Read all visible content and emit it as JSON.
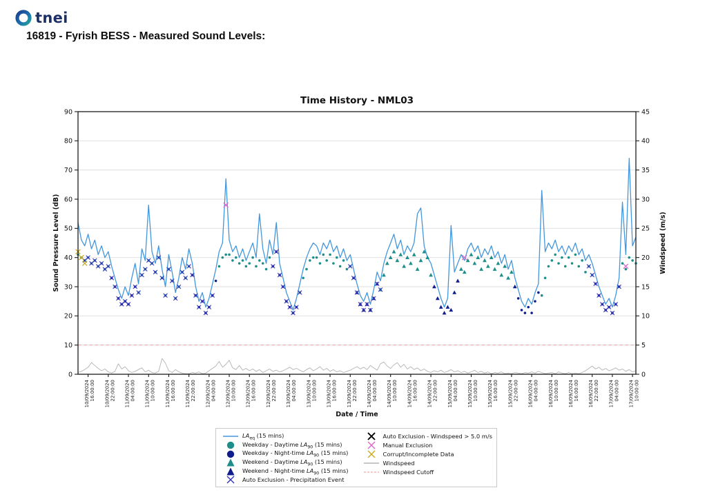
{
  "header": {
    "logo_text": "tnei",
    "title": "16819 - Fyrish BESS - Measured Sound Levels:"
  },
  "chart": {
    "title": "Time History - NML03",
    "x_label": "Date / Time",
    "y_left_label": "Sound Pressure Level (dB)",
    "y_right_label": "Windspeed (m/s)",
    "y_left_ticks": [
      0,
      10,
      20,
      30,
      40,
      50,
      60,
      70,
      80,
      90
    ],
    "y_right_ticks": [
      0,
      5,
      10,
      15,
      20,
      25,
      30,
      35,
      40,
      45
    ],
    "x_ticks": [
      {
        "date": "10/09/2024",
        "time": "16:00:00"
      },
      {
        "date": "10/09/2024",
        "time": "22:00:00"
      },
      {
        "date": "11/09/2024",
        "time": "04:00:00"
      },
      {
        "date": "11/09/2024",
        "time": "10:00:00"
      },
      {
        "date": "11/09/2024",
        "time": "16:00:00"
      },
      {
        "date": "11/09/2024",
        "time": "22:00:00"
      },
      {
        "date": "12/09/2024",
        "time": "04:00:00"
      },
      {
        "date": "12/09/2024",
        "time": "10:00:00"
      },
      {
        "date": "12/09/2024",
        "time": "16:00:00"
      },
      {
        "date": "12/09/2024",
        "time": "22:00:00"
      },
      {
        "date": "13/09/2024",
        "time": "04:00:00"
      },
      {
        "date": "13/09/2024",
        "time": "10:00:00"
      },
      {
        "date": "13/09/2024",
        "time": "16:00:00"
      },
      {
        "date": "13/09/2024",
        "time": "22:00:00"
      },
      {
        "date": "14/09/2024",
        "time": "04:00:00"
      },
      {
        "date": "14/09/2024",
        "time": "10:00:00"
      },
      {
        "date": "14/09/2024",
        "time": "16:00:00"
      },
      {
        "date": "14/09/2024",
        "time": "22:00:00"
      },
      {
        "date": "15/09/2024",
        "time": "04:00:00"
      },
      {
        "date": "15/09/2024",
        "time": "10:00:00"
      },
      {
        "date": "15/09/2024",
        "time": "16:00:00"
      },
      {
        "date": "15/09/2024",
        "time": "22:00:00"
      },
      {
        "date": "16/09/2024",
        "time": "04:00:00"
      },
      {
        "date": "16/09/2024",
        "time": "10:00:00"
      },
      {
        "date": "16/09/2024",
        "time": "16:00:00"
      },
      {
        "date": "16/09/2024",
        "time": "22:00:00"
      },
      {
        "date": "17/09/2024",
        "time": "04:00:00"
      },
      {
        "date": "17/09/2024",
        "time": "10:00:00"
      }
    ],
    "colors": {
      "laeq": "#4296dd",
      "daytime": "#1d8e8a",
      "nighttime": "#101d8c",
      "precip_x": "#3434bb",
      "black_x": "#000000",
      "manual_x": "#d966cc",
      "corrupt_x": "#ccaa22",
      "windspeed": "#b3b3b3",
      "cutoff": "#f2a3a3",
      "grid": "#dcdcdc",
      "spine": "#1a1a1a"
    }
  },
  "chart_data": {
    "type": "line",
    "x_unit": "hours since 10/09/2024 13:00",
    "start_hour_of_day": 13,
    "weekend_day_offsets": [
      4,
      5
    ],
    "night_start_hour": 23,
    "night_end_hour": 7,
    "first_tick_hour": 3,
    "tick_interval_hours": 6,
    "x_max": 166,
    "ylim_left": [
      0,
      90
    ],
    "ylim_right": [
      0,
      45
    ],
    "windspeed_cutoff": 5,
    "series": [
      {
        "name": "LAeq (15 mins)",
        "axis": "left",
        "values": [
          52,
          46,
          44,
          48,
          43,
          46,
          41,
          44,
          40,
          42,
          37,
          33,
          29,
          26,
          30,
          27,
          33,
          38,
          31,
          43,
          39,
          58,
          42,
          38,
          44,
          36,
          30,
          41,
          35,
          28,
          33,
          40,
          36,
          43,
          38,
          30,
          25,
          28,
          23,
          26,
          31,
          36,
          42,
          45,
          67,
          46,
          42,
          44,
          40,
          43,
          39,
          42,
          45,
          40,
          55,
          43,
          38,
          46,
          41,
          52,
          38,
          33,
          28,
          25,
          22,
          26,
          31,
          36,
          40,
          43,
          45,
          44,
          41,
          45,
          43,
          46,
          42,
          44,
          40,
          43,
          39,
          41,
          36,
          31,
          27,
          25,
          28,
          24,
          29,
          35,
          32,
          38,
          42,
          45,
          48,
          43,
          46,
          41,
          44,
          42,
          45,
          55,
          57,
          44,
          40,
          38,
          34,
          30,
          26,
          23,
          26,
          51,
          35,
          38,
          41,
          39,
          43,
          45,
          42,
          44,
          40,
          43,
          41,
          44,
          40,
          42,
          38,
          41,
          36,
          39,
          33,
          29,
          25,
          23,
          26,
          24,
          28,
          31,
          63,
          42,
          45,
          43,
          46,
          42,
          44,
          41,
          44,
          42,
          45,
          41,
          43,
          39,
          41,
          38,
          34,
          30,
          27,
          24,
          26,
          23,
          27,
          33,
          59,
          41,
          74,
          44,
          47
        ]
      },
      {
        "name": "LA90 (15 mins)",
        "axis": "left",
        "values": [
          41,
          40,
          39,
          40,
          38,
          39,
          37,
          38,
          36,
          37,
          33,
          30,
          26,
          24,
          25,
          24,
          27,
          30,
          28,
          34,
          36,
          39,
          38,
          35,
          40,
          33,
          27,
          36,
          32,
          26,
          30,
          35,
          33,
          37,
          34,
          27,
          23,
          25,
          21,
          23,
          27,
          32,
          37,
          40,
          41,
          41,
          39,
          40,
          38,
          39,
          37,
          38,
          40,
          37,
          39,
          38,
          36,
          40,
          37,
          42,
          34,
          30,
          25,
          23,
          21,
          23,
          28,
          33,
          36,
          39,
          40,
          40,
          38,
          41,
          39,
          41,
          38,
          40,
          37,
          39,
          36,
          37,
          33,
          28,
          24,
          22,
          24,
          22,
          26,
          31,
          29,
          34,
          38,
          40,
          42,
          39,
          41,
          37,
          40,
          38,
          41,
          36,
          39,
          42,
          40,
          34,
          30,
          26,
          23,
          21,
          23,
          22,
          28,
          32,
          36,
          35,
          39,
          41,
          38,
          40,
          36,
          39,
          37,
          40,
          36,
          38,
          34,
          37,
          33,
          35,
          30,
          26,
          22,
          21,
          23,
          21,
          25,
          28,
          27,
          33,
          37,
          39,
          41,
          38,
          40,
          37,
          40,
          38,
          41,
          37,
          39,
          35,
          37,
          34,
          31,
          27,
          24,
          22,
          23,
          21,
          24,
          30,
          38,
          36,
          40,
          39,
          38
        ]
      },
      {
        "name": "Windspeed",
        "axis": "right",
        "values": [
          0.3,
          0.5,
          0.8,
          1.2,
          2.0,
          1.5,
          1.0,
          0.6,
          0.9,
          0.4,
          0.2,
          0.5,
          1.8,
          0.9,
          1.3,
          0.6,
          0.3,
          0.5,
          0.8,
          1.1,
          0.4,
          0.7,
          0.3,
          0.2,
          0.5,
          2.7,
          1.9,
          0.6,
          0.3,
          0.8,
          0.4,
          0.2,
          0.1,
          0.1,
          0.3,
          0.2,
          0.4,
          0.1,
          0.2,
          0.6,
          1.0,
          1.4,
          2.2,
          1.2,
          1.7,
          2.4,
          1.1,
          0.8,
          1.5,
          0.7,
          1.0,
          0.6,
          0.9,
          0.5,
          0.8,
          0.3,
          0.6,
          0.9,
          0.5,
          0.7,
          0.4,
          0.6,
          0.9,
          1.2,
          0.8,
          1.0,
          0.7,
          0.4,
          0.8,
          1.1,
          0.6,
          0.9,
          1.3,
          0.7,
          1.0,
          0.5,
          0.8,
          0.4,
          0.6,
          0.3,
          0.5,
          0.7,
          1.0,
          1.3,
          0.9,
          1.2,
          0.8,
          1.5,
          1.1,
          0.7,
          1.8,
          2.1,
          1.4,
          1.0,
          1.6,
          2.0,
          1.2,
          1.7,
          0.9,
          1.3,
          0.8,
          1.1,
          0.6,
          0.9,
          0.5,
          0.3,
          0.6,
          0.4,
          0.7,
          0.3,
          0.5,
          0.8,
          0.4,
          0.6,
          0.3,
          0.5,
          0.2,
          0.4,
          0.7,
          0.3,
          0.5,
          0.2,
          0.4,
          0.1,
          0.3,
          0.2,
          0.4,
          0.1,
          0.2,
          0.1,
          0.3,
          0.2,
          0.1,
          0.3,
          0.2,
          0.4,
          0.2,
          0.5,
          0.3,
          0.1,
          0.2,
          0.3,
          0.1,
          0.4,
          0.2,
          0.1,
          0.3,
          0.1,
          0.2,
          0.1,
          0.3,
          0.6,
          1.0,
          1.4,
          0.9,
          1.2,
          0.7,
          1.0,
          0.6,
          0.8,
          1.1,
          0.7,
          0.9,
          0.5,
          0.8,
          0.4,
          0.6
        ]
      }
    ],
    "exclusions": {
      "precipitation_ranges": [
        [
          2,
          40
        ],
        [
          58,
          66
        ],
        [
          81,
          90
        ],
        [
          152,
          161
        ]
      ],
      "windspeed_points": [],
      "manual_points": [
        [
          44,
          58
        ],
        [
          115,
          40
        ],
        [
          163,
          37
        ]
      ],
      "corrupt_points": [
        [
          0,
          42
        ],
        [
          1,
          40
        ],
        [
          2,
          38
        ]
      ]
    }
  },
  "legend": {
    "col1": [
      {
        "marker": "line",
        "color": "#4296dd",
        "a": "",
        "i": "LA",
        "sub": "eq",
        "d": " (15 mins)"
      },
      {
        "marker": "circle",
        "color": "#1d8e8a",
        "a": "Weekday - Daytime ",
        "i": "LA",
        "sub": "90",
        "d": " (15 mins)"
      },
      {
        "marker": "circle",
        "color": "#101d8c",
        "a": "Weekday - Night-time ",
        "i": "LA",
        "sub": "90",
        "d": " (15 mins)"
      },
      {
        "marker": "triangle",
        "color": "#1d8e8a",
        "a": "Weekend - Daytime ",
        "i": "LA",
        "sub": "90",
        "d": " (15 mins)"
      },
      {
        "marker": "triangle",
        "color": "#101d8c",
        "a": "Weekend - Night-time ",
        "i": "LA",
        "sub": "90",
        "d": " (15 mins)"
      },
      {
        "marker": "x",
        "color": "#3434bb",
        "a": "Auto Exclusion - Precipitation Event",
        "i": "",
        "sub": "",
        "d": ""
      }
    ],
    "col2": [
      {
        "marker": "xbold",
        "color": "#000000",
        "a": "Auto Exclusion - Windspeed > 5.0 m/s",
        "i": "",
        "sub": "",
        "d": ""
      },
      {
        "marker": "x",
        "color": "#d966cc",
        "a": "Manual Exclusion",
        "i": "",
        "sub": "",
        "d": ""
      },
      {
        "marker": "x",
        "color": "#ccaa22",
        "a": "Corrupt/Incomplete Data",
        "i": "",
        "sub": "",
        "d": ""
      },
      {
        "marker": "line",
        "color": "#b3b3b3",
        "a": "Windspeed",
        "i": "",
        "sub": "",
        "d": ""
      },
      {
        "marker": "dashed",
        "color": "#f2a3a3",
        "a": "Windspeed Cutoff",
        "i": "",
        "sub": "",
        "d": ""
      }
    ]
  }
}
